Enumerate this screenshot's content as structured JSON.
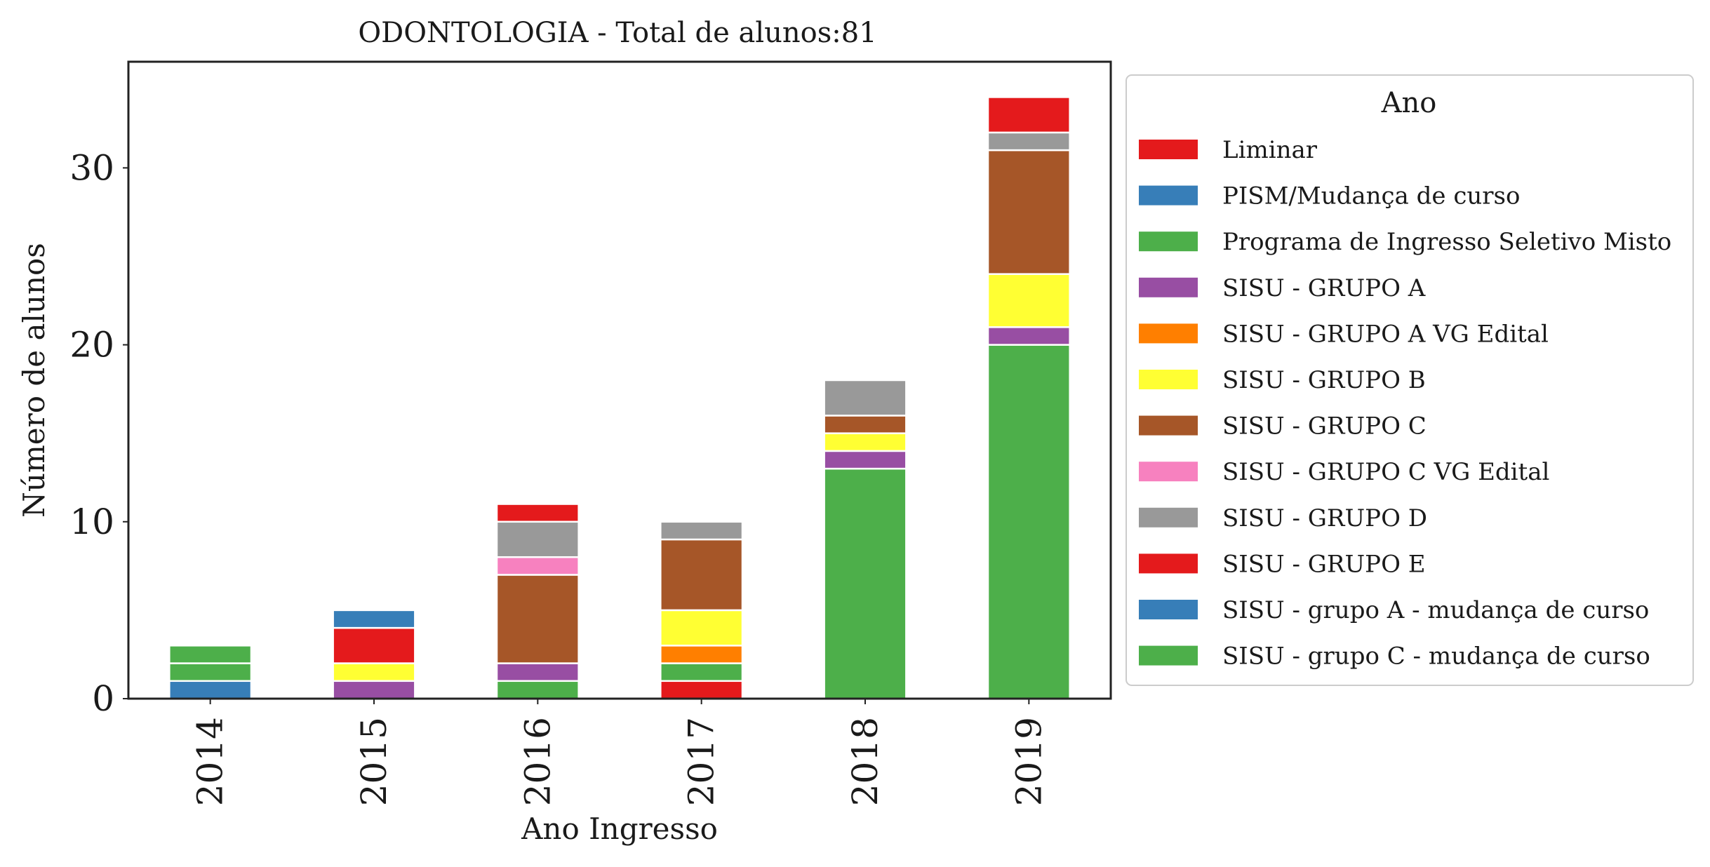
{
  "chart_data": {
    "type": "bar",
    "stacked": true,
    "title": "ODONTOLOGIA - Total de alunos:81",
    "xlabel": "Ano Ingresso",
    "ylabel": "Número de alunos",
    "categories": [
      "2014",
      "2015",
      "2016",
      "2017",
      "2018",
      "2019"
    ],
    "ylim": [
      0,
      36
    ],
    "yticks": [
      0,
      10,
      20,
      30
    ],
    "legend": {
      "title": "Ano",
      "placement": "outside-right"
    },
    "series": [
      {
        "name": "Liminar",
        "color": "#e41a1c",
        "values": [
          0,
          0,
          0,
          1,
          0,
          0
        ]
      },
      {
        "name": "PISM/Mudança de curso",
        "color": "#377eb8",
        "values": [
          1,
          0,
          0,
          0,
          0,
          0
        ]
      },
      {
        "name": "Programa de Ingresso Seletivo Misto",
        "color": "#4daf4a",
        "values": [
          1,
          0,
          1,
          1,
          13,
          20
        ]
      },
      {
        "name": "SISU - GRUPO A",
        "color": "#984ea3",
        "values": [
          0,
          1,
          1,
          0,
          1,
          1
        ]
      },
      {
        "name": "SISU - GRUPO A VG Edital",
        "color": "#ff7f00",
        "values": [
          0,
          0,
          0,
          1,
          0,
          0
        ]
      },
      {
        "name": "SISU - GRUPO B",
        "color": "#ffff33",
        "values": [
          0,
          1,
          0,
          2,
          1,
          3
        ]
      },
      {
        "name": "SISU - GRUPO C",
        "color": "#a65628",
        "values": [
          0,
          0,
          5,
          4,
          1,
          7
        ]
      },
      {
        "name": "SISU - GRUPO C VG Edital",
        "color": "#f781bf",
        "values": [
          0,
          0,
          1,
          0,
          0,
          0
        ]
      },
      {
        "name": "SISU - GRUPO D",
        "color": "#999999",
        "values": [
          0,
          0,
          2,
          1,
          2,
          1
        ]
      },
      {
        "name": "SISU - GRUPO E",
        "color": "#e41a1c",
        "values": [
          0,
          2,
          1,
          0,
          0,
          2
        ]
      },
      {
        "name": "SISU - grupo A - mudança de curso",
        "color": "#377eb8",
        "values": [
          0,
          1,
          0,
          0,
          0,
          0
        ]
      },
      {
        "name": "SISU - grupo C - mudança de curso",
        "color": "#4daf4a",
        "values": [
          1,
          0,
          0,
          0,
          0,
          0
        ]
      }
    ]
  }
}
